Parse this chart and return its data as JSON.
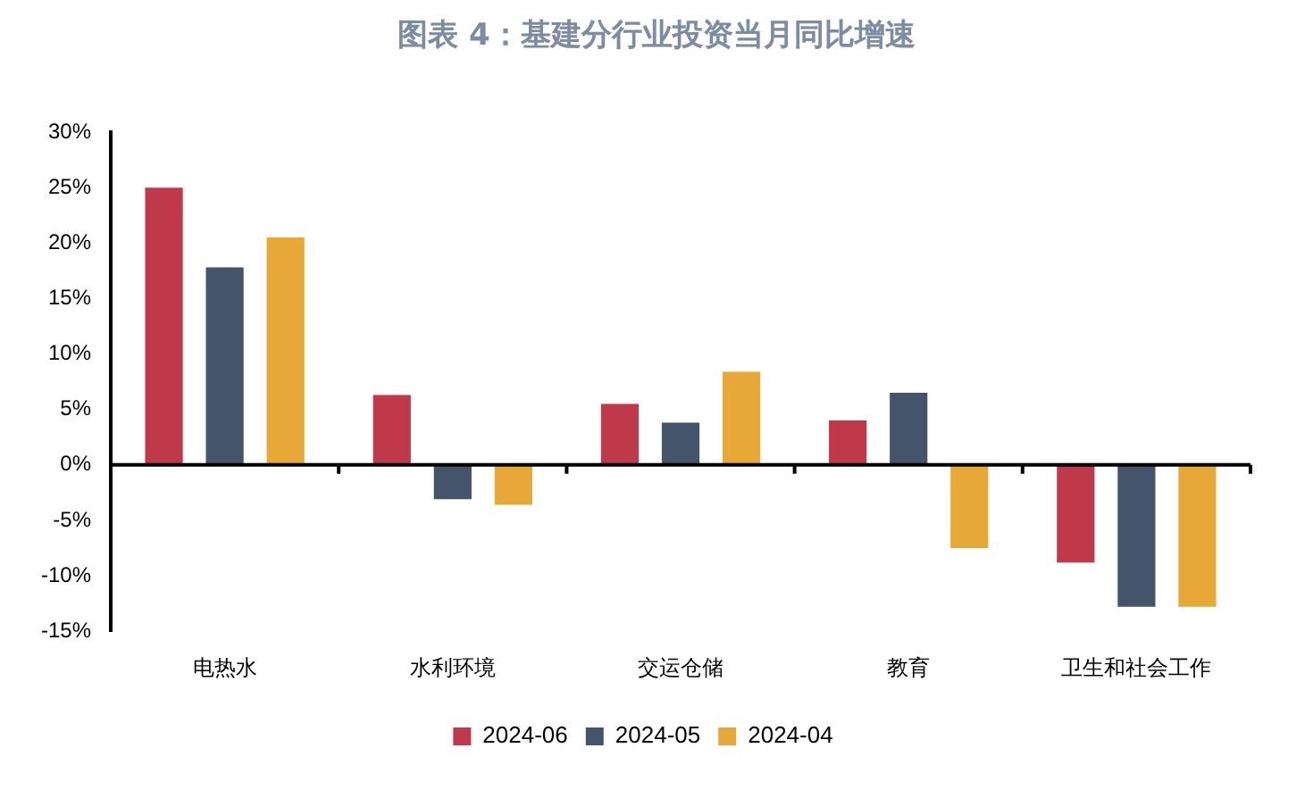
{
  "chart_data": {
    "type": "bar",
    "title": "图表 4：基建分行业投资当月同比增速",
    "categories": [
      "电热水",
      "水利环境",
      "交运仓储",
      "教育",
      "卫生和社会工作"
    ],
    "series": [
      {
        "name": "2024-06",
        "color": "#c0394b",
        "values": [
          25.0,
          6.3,
          5.5,
          4.0,
          -8.8
        ]
      },
      {
        "name": "2024-05",
        "color": "#44546a",
        "values": [
          17.8,
          -3.1,
          3.8,
          6.5,
          -12.8
        ]
      },
      {
        "name": "2024-04",
        "color": "#e8a838",
        "values": [
          20.5,
          -3.6,
          8.4,
          -7.5,
          -12.8
        ]
      }
    ],
    "ylim": [
      -15,
      30
    ],
    "yticks": [
      {
        "value": -15,
        "label": "-15%"
      },
      {
        "value": -10,
        "label": "-10%"
      },
      {
        "value": -5,
        "label": "-5%"
      },
      {
        "value": 0,
        "label": "0%"
      },
      {
        "value": 5,
        "label": "5%"
      },
      {
        "value": 10,
        "label": "10%"
      },
      {
        "value": 15,
        "label": "15%"
      },
      {
        "value": 20,
        "label": "20%"
      },
      {
        "value": 25,
        "label": "25%"
      },
      {
        "value": 30,
        "label": "30%"
      }
    ],
    "ref_lines": [
      {
        "axis": "y",
        "value": 0,
        "color": "#000000"
      }
    ],
    "grid": false,
    "legend": "bottom"
  }
}
